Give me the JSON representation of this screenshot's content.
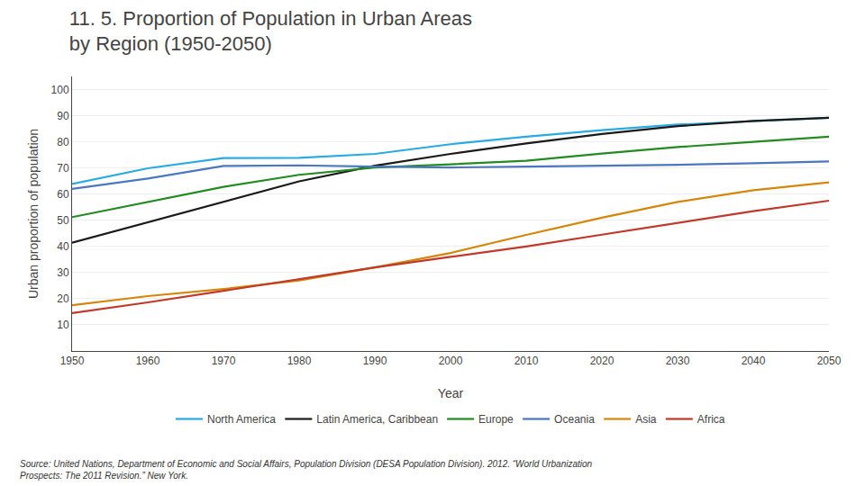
{
  "chart_data": {
    "type": "line",
    "title": "11. 5. Proportion of Population in Urban Areas\nby Region (1950-2050)",
    "x_label": "Year",
    "y_label": "Urban proportion of population",
    "annotations": [
      "Source: United Nations, Department of Economic and Social Affairs, Population Division (DESA Population Division). 2012. “World Urbanization\nProspects: The 2011 Revision.” New York."
    ],
    "x": [
      1950,
      1960,
      1970,
      1980,
      1990,
      2000,
      2010,
      2020,
      2030,
      2040,
      2050
    ],
    "series": [
      {
        "name": "North America",
        "color": "#29ABE2",
        "values": [
          63.9,
          69.9,
          73.8,
          73.9,
          75.4,
          79.1,
          82.0,
          84.5,
          86.6,
          88.0,
          89.2
        ]
      },
      {
        "name": "Latin America, Caribbean",
        "color": "#1A1A1A",
        "values": [
          41.4,
          49.3,
          57.2,
          64.9,
          70.9,
          75.4,
          79.4,
          83.0,
          86.0,
          88.0,
          89.2
        ]
      },
      {
        "name": "Europe",
        "color": "#228B22",
        "values": [
          51.2,
          57.0,
          62.8,
          67.4,
          70.2,
          71.4,
          72.8,
          75.5,
          78.0,
          80.0,
          82.0
        ]
      },
      {
        "name": "Oceania",
        "color": "#4B77BE",
        "values": [
          62.0,
          66.0,
          70.8,
          71.0,
          70.5,
          70.2,
          70.5,
          70.8,
          71.2,
          71.8,
          72.5
        ]
      },
      {
        "name": "Asia",
        "color": "#D4870A",
        "values": [
          17.5,
          21.0,
          23.7,
          27.0,
          32.0,
          37.5,
          44.4,
          51.0,
          57.0,
          61.5,
          64.5
        ]
      },
      {
        "name": "Africa",
        "color": "#C0392B",
        "values": [
          14.5,
          18.6,
          23.0,
          27.4,
          32.0,
          36.0,
          40.0,
          44.5,
          49.0,
          53.5,
          57.5
        ]
      }
    ],
    "xlim": [
      1950,
      2050
    ],
    "xticks": [
      1950,
      1960,
      1970,
      1980,
      1990,
      2000,
      2010,
      2020,
      2030,
      2040,
      2050
    ],
    "ylim": [
      0,
      105
    ],
    "yticks": [
      10,
      20,
      30,
      40,
      50,
      60,
      70,
      80,
      90,
      100
    ],
    "grid": "y",
    "legend": "bottom"
  }
}
